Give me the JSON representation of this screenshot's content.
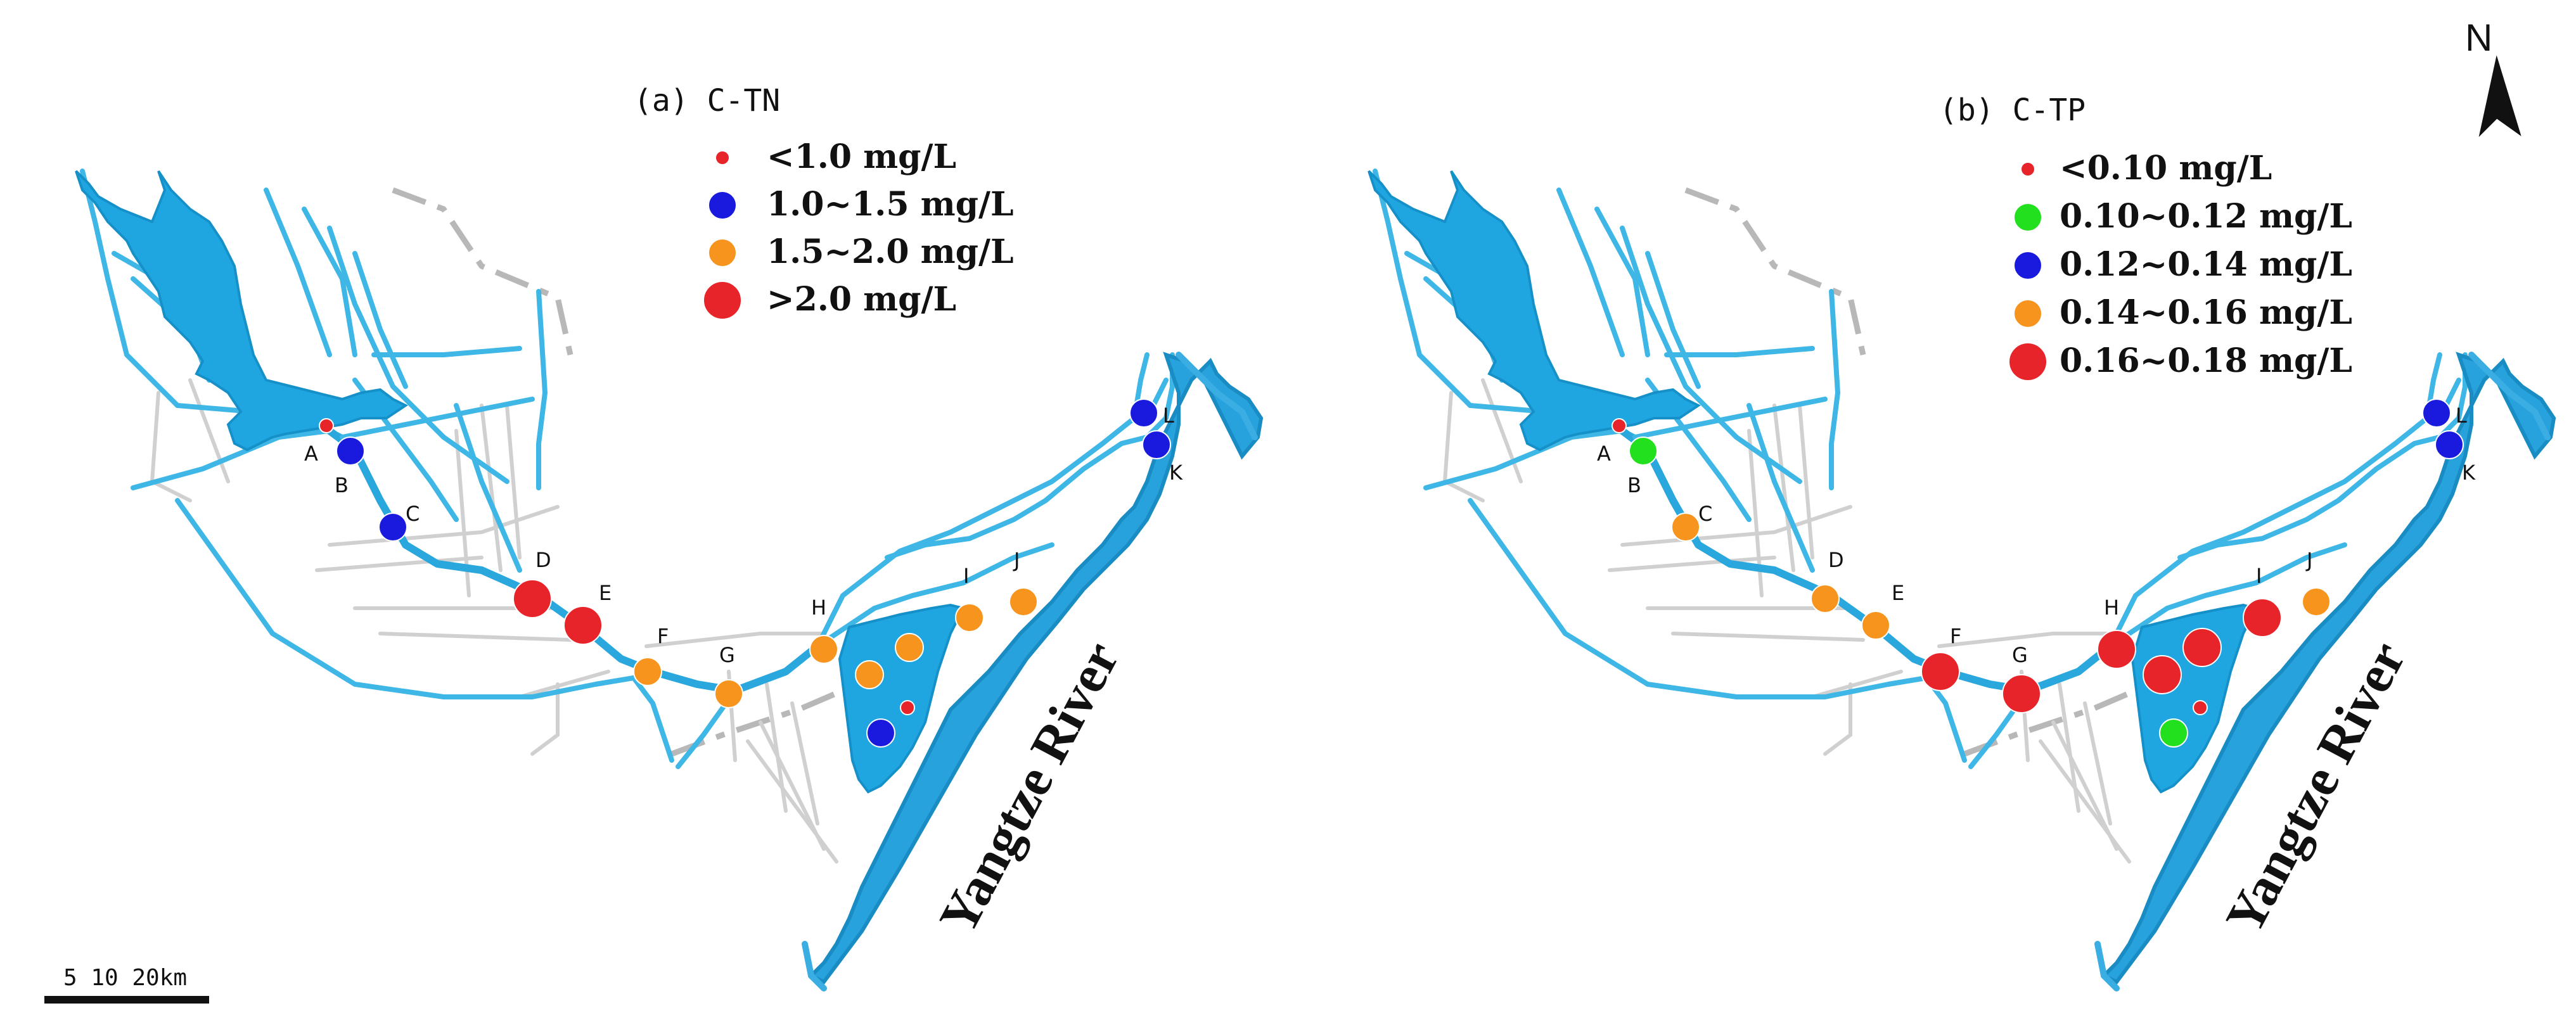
{
  "panels": [
    {
      "id": "a",
      "title": "(a) C-TN",
      "legend": [
        {
          "label": "<1.0 mg/L",
          "color": "#e8242b",
          "size": "small"
        },
        {
          "label": "1.0~1.5 mg/L",
          "color": "#1a1adf",
          "size": "medium"
        },
        {
          "label": "1.5~2.0 mg/L",
          "color": "#f7941d",
          "size": "medium"
        },
        {
          "label": ">2.0 mg/L",
          "color": "#e8242b",
          "size": "large"
        }
      ],
      "sites": [
        {
          "label": "A",
          "class": "<1.0 mg/L"
        },
        {
          "label": "B",
          "class": "1.0~1.5 mg/L"
        },
        {
          "label": "C",
          "class": "1.0~1.5 mg/L"
        },
        {
          "label": "D",
          "class": ">2.0 mg/L"
        },
        {
          "label": "E",
          "class": ">2.0 mg/L"
        },
        {
          "label": "F",
          "class": "1.5~2.0 mg/L"
        },
        {
          "label": "G",
          "class": "1.5~2.0 mg/L"
        },
        {
          "label": "H",
          "class": "1.5~2.0 mg/L"
        },
        {
          "label": "I",
          "class": "1.5~2.0 mg/L"
        },
        {
          "label": "J",
          "class": "1.5~2.0 mg/L"
        },
        {
          "label": "K",
          "class": "1.0~1.5 mg/L"
        },
        {
          "label": "L",
          "class": "1.0~1.5 mg/L"
        }
      ],
      "lake_points": [
        {
          "class": "1.5~2.0 mg/L"
        },
        {
          "class": "1.5~2.0 mg/L"
        },
        {
          "class": "<1.0 mg/L"
        },
        {
          "class": "1.0~1.5 mg/L"
        }
      ]
    },
    {
      "id": "b",
      "title": "(b) C-TP",
      "legend": [
        {
          "label": "<0.10 mg/L",
          "color": "#e8242b",
          "size": "small"
        },
        {
          "label": "0.10~0.12 mg/L",
          "color": "#22e01e",
          "size": "medium"
        },
        {
          "label": "0.12~0.14 mg/L",
          "color": "#1a1adf",
          "size": "medium"
        },
        {
          "label": "0.14~0.16 mg/L",
          "color": "#f7941d",
          "size": "medium"
        },
        {
          "label": "0.16~0.18 mg/L",
          "color": "#e8242b",
          "size": "large"
        }
      ],
      "sites": [
        {
          "label": "A",
          "class": "<0.10 mg/L"
        },
        {
          "label": "B",
          "class": "0.10~0.12 mg/L"
        },
        {
          "label": "C",
          "class": "0.14~0.16 mg/L"
        },
        {
          "label": "D",
          "class": "0.14~0.16 mg/L"
        },
        {
          "label": "E",
          "class": "0.14~0.16 mg/L"
        },
        {
          "label": "F",
          "class": "0.16~0.18 mg/L"
        },
        {
          "label": "G",
          "class": "0.16~0.18 mg/L"
        },
        {
          "label": "H",
          "class": "0.16~0.18 mg/L"
        },
        {
          "label": "I",
          "class": "0.16~0.18 mg/L"
        },
        {
          "label": "J",
          "class": "0.14~0.16 mg/L"
        },
        {
          "label": "K",
          "class": "0.12~0.14 mg/L"
        },
        {
          "label": "L",
          "class": "0.12~0.14 mg/L"
        }
      ],
      "lake_points": [
        {
          "class": "0.16~0.18 mg/L"
        },
        {
          "class": "0.16~0.18 mg/L"
        },
        {
          "class": "<0.10 mg/L"
        },
        {
          "class": "0.10~0.12 mg/L"
        }
      ]
    }
  ],
  "river_name": "Yangtze River",
  "north_label": "N",
  "scale_label": "5 10  20km"
}
